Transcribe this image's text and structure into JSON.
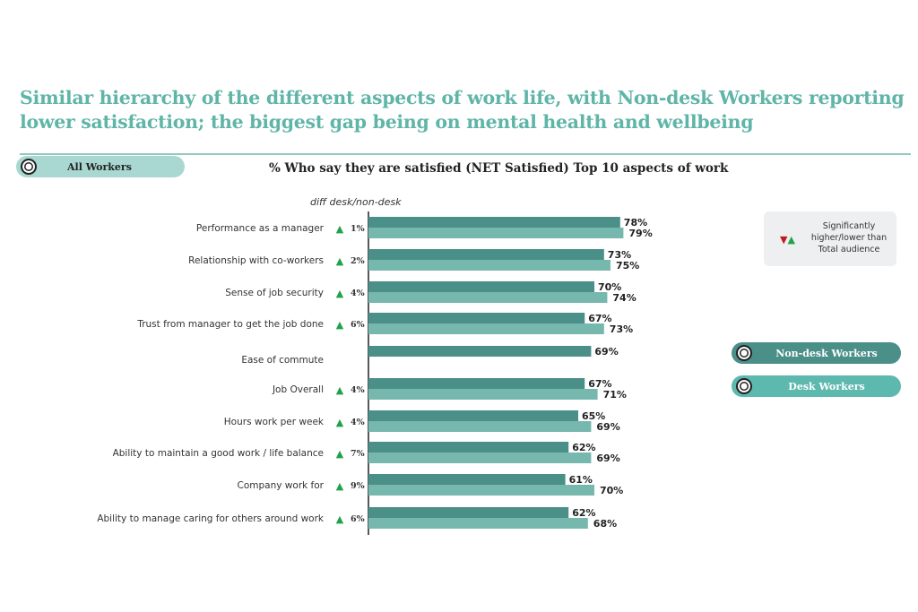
{
  "header": {
    "title": "Similar hierarchy of the different aspects of work life, with Non-desk Workers reporting lower satisfaction; the biggest gap being on mental health and wellbeing"
  },
  "filters": {
    "all_workers": "All Workers",
    "non_desk": "Non-desk Workers",
    "desk": "Desk Workers"
  },
  "legend": {
    "significance": "Significantly higher/lower than Total audience",
    "colors": {
      "down": "#c0191f",
      "up": "#1fa24a"
    }
  },
  "chart_data": {
    "type": "bar",
    "orientation": "horizontal",
    "title": "% Who say they are satisfied (NET Satisfied) Top 10 aspects of work",
    "diff_header": "diff desk/non-desk",
    "categories": [
      "Performance as a manager",
      "Relationship with co-workers",
      "Sense of job security",
      "Trust from manager to get the job done",
      "Ease of commute",
      "Job Overall",
      "Hours work per week",
      "Ability to maintain a good work / life balance",
      "Company work for",
      "Ability to manage caring for others around work"
    ],
    "series": [
      {
        "name": "Non-desk Workers",
        "color": "#4a8f88",
        "values": [
          78,
          73,
          70,
          67,
          69,
          67,
          65,
          62,
          61,
          62
        ]
      },
      {
        "name": "Desk Workers",
        "color": "#76b7ae",
        "values": [
          79,
          75,
          74,
          73,
          null,
          71,
          69,
          69,
          70,
          68
        ]
      }
    ],
    "diff": [
      "1%",
      "2%",
      "4%",
      "6%",
      null,
      "4%",
      "4%",
      "7%",
      "9%",
      "6%"
    ],
    "diff_direction": [
      "up",
      "up",
      "up",
      "up",
      null,
      "up",
      "up",
      "up",
      "up",
      "up"
    ],
    "value_format": "percent",
    "xlim": [
      0,
      100
    ],
    "grid": false
  }
}
